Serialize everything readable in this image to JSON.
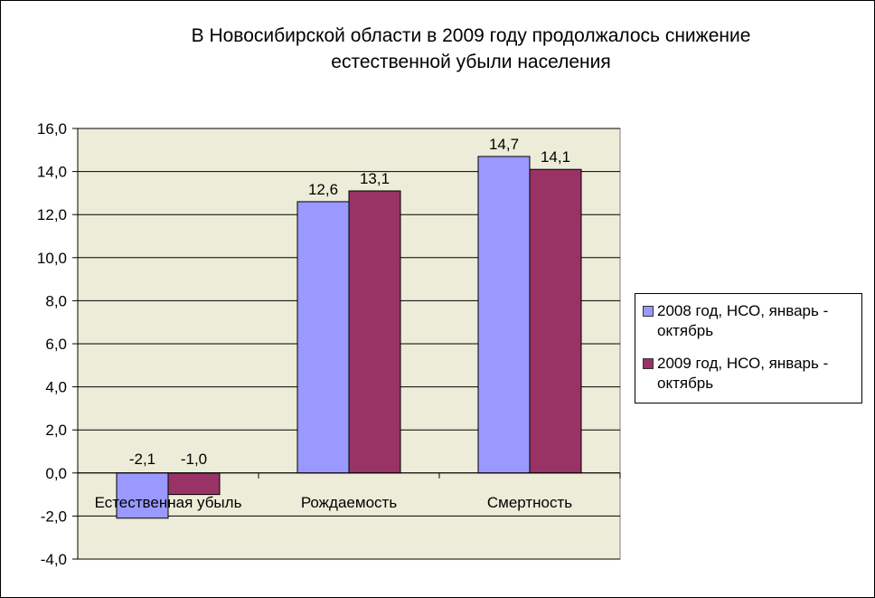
{
  "colors": {
    "series_2008": "#9999ff",
    "series_2009": "#993366",
    "plot_background": "#ececd8",
    "gridline": "#000000"
  },
  "chart_data": {
    "type": "bar",
    "title": "В Новосибирской области в 2009 году продолжалось снижение\nестественной убыли населения",
    "categories": [
      "Естественная убыль",
      "Рождаемость",
      "Смертность"
    ],
    "series": [
      {
        "name": "2008 год, НСО, январь - октябрь",
        "values": [
          -2.1,
          12.6,
          14.7
        ]
      },
      {
        "name": "2009 год, НСО, январь - октябрь",
        "values": [
          -1.0,
          13.1,
          14.1
        ]
      }
    ],
    "data_labels": [
      [
        "-2,1",
        "12,6",
        "14,7"
      ],
      [
        "-1,0",
        "13,1",
        "14,1"
      ]
    ],
    "y_ticks": [
      "16,0",
      "14,0",
      "12,0",
      "10,0",
      "8,0",
      "6,0",
      "4,0",
      "2,0",
      "0,0",
      "-2,0",
      "-4,0"
    ],
    "ylim": [
      -4,
      16
    ],
    "y_step": 2,
    "grid": true,
    "legend_position": "right"
  }
}
